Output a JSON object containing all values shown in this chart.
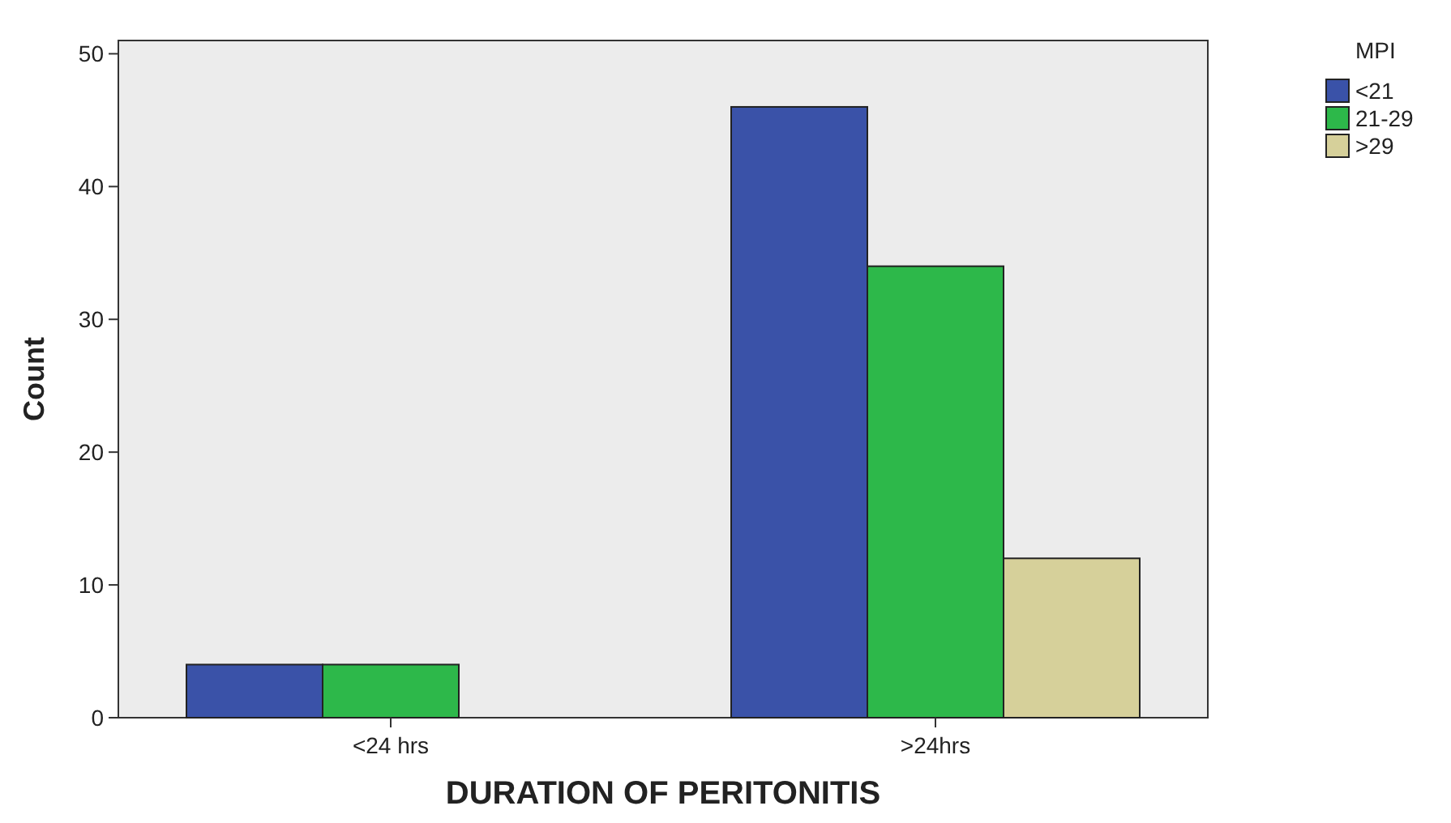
{
  "chart_data": {
    "type": "bar",
    "xlabel": "DURATION OF PERITONITIS",
    "ylabel": "Count",
    "legend_title": "MPI",
    "legend": "top right",
    "categories": [
      "<24 hrs",
      ">24hrs"
    ],
    "series": [
      {
        "name": "<21",
        "color": "#3a52a8",
        "values": [
          4,
          46
        ]
      },
      {
        "name": "21-29",
        "color": "#2db84a",
        "values": [
          4,
          34
        ]
      },
      {
        "name": ">29",
        "color": "#d6d09a",
        "values": [
          null,
          12
        ]
      }
    ],
    "ylim": [
      0,
      51
    ],
    "yticks": [
      0,
      10,
      20,
      30,
      40,
      50
    ]
  }
}
